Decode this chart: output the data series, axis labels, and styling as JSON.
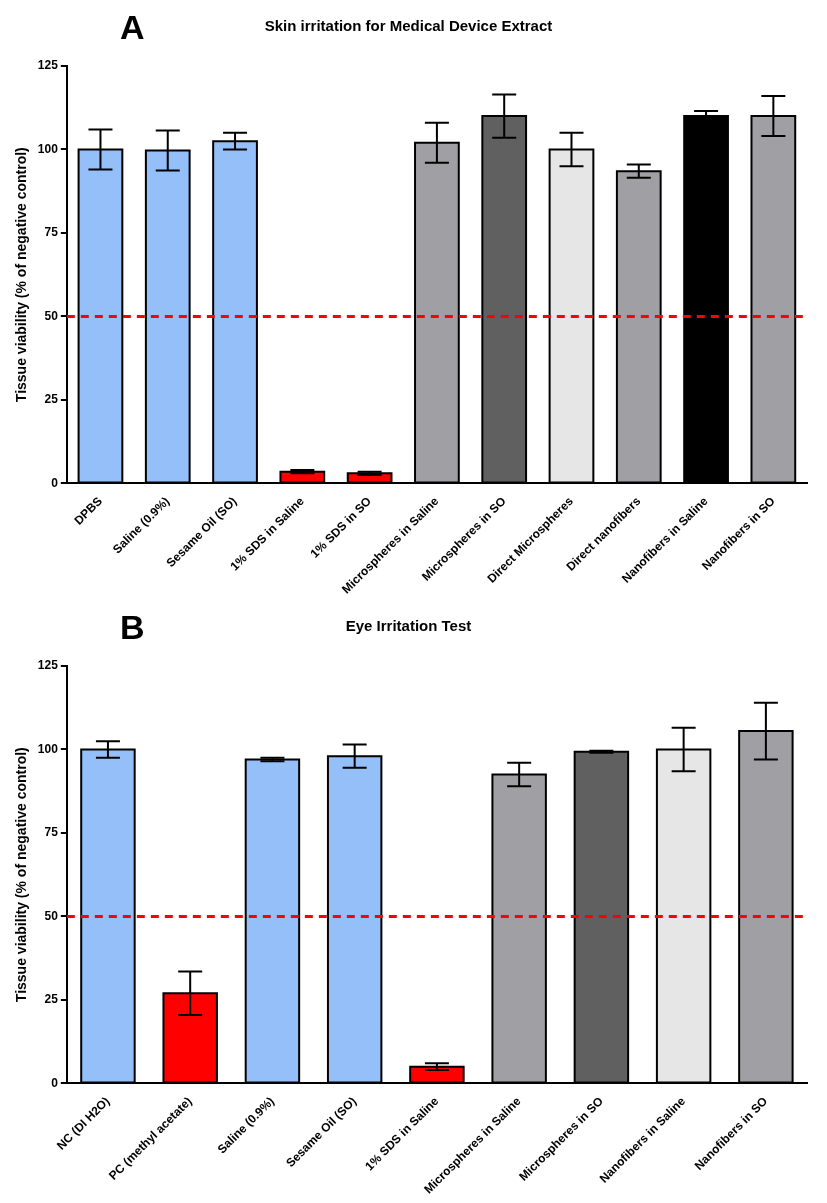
{
  "chart_data": [
    {
      "type": "bar",
      "title": "Skin irritation for Medical Device Extract",
      "ylabel": "Tissue viability (% of negative control)",
      "annotations": [
        "A"
      ],
      "categories": [
        "DPBS",
        "Saline (0.9%)",
        "Sesame Oil (SO)",
        "1% SDS in Saline",
        "1% SDS in SO",
        "Microspheres in Saline",
        "Microspheres in SO",
        "Direct Microspheres",
        "Direct nanofibers",
        "Nanofibers in Saline",
        "Nanofibers in SO"
      ],
      "values": [
        100,
        99.7,
        102.5,
        3.5,
        3,
        102,
        110,
        100,
        93.5,
        110,
        110
      ],
      "errors": [
        6,
        6,
        2.5,
        0.5,
        0.5,
        6,
        6.5,
        5,
        2,
        1.5,
        6
      ],
      "colors": [
        "#94bff8",
        "#94bff8",
        "#94bff8",
        "#ff0000",
        "#ff0000",
        "#a0a0a4",
        "#606060",
        "#e6e6e6",
        "#a0a0a4",
        "#000000",
        "#a0a0a4"
      ],
      "ylim": [
        0,
        125
      ],
      "yticks": [
        0,
        25,
        50,
        75,
        100,
        125
      ],
      "grid": false,
      "legend": false,
      "ref_lines": [
        {
          "axis": "y",
          "value": 50,
          "color": "#ff0000",
          "line_style": "dashed"
        }
      ]
    },
    {
      "type": "bar",
      "title": "Eye Irritation Test",
      "ylabel": "Tissue viability (% of negative control)",
      "annotations": [
        "B"
      ],
      "categories": [
        "NC (DI H2O)",
        "PC (methyl acetate)",
        "Saline (0.9%)",
        "Sesame Oil (SO)",
        "1% SDS in Saline",
        "Microspheres in Saline",
        "Microspheres in SO",
        "Nanofibers in Saline",
        "Nanofibers in SO"
      ],
      "values": [
        100,
        27,
        97,
        98,
        5,
        92.5,
        99.3,
        100,
        105.5
      ],
      "errors": [
        2.5,
        6.5,
        0.5,
        3.5,
        1,
        3.5,
        0.3,
        6.5,
        8.5
      ],
      "colors": [
        "#94bff8",
        "#ff0000",
        "#94bff8",
        "#94bff8",
        "#ff0000",
        "#a0a0a4",
        "#606060",
        "#e6e6e6",
        "#a0a0a4"
      ],
      "ylim": [
        0,
        125
      ],
      "yticks": [
        0,
        25,
        50,
        75,
        100,
        125
      ],
      "grid": false,
      "legend": false,
      "ref_lines": [
        {
          "axis": "y",
          "value": 50,
          "color": "#ff0000",
          "line_style": "dashed"
        }
      ]
    }
  ]
}
